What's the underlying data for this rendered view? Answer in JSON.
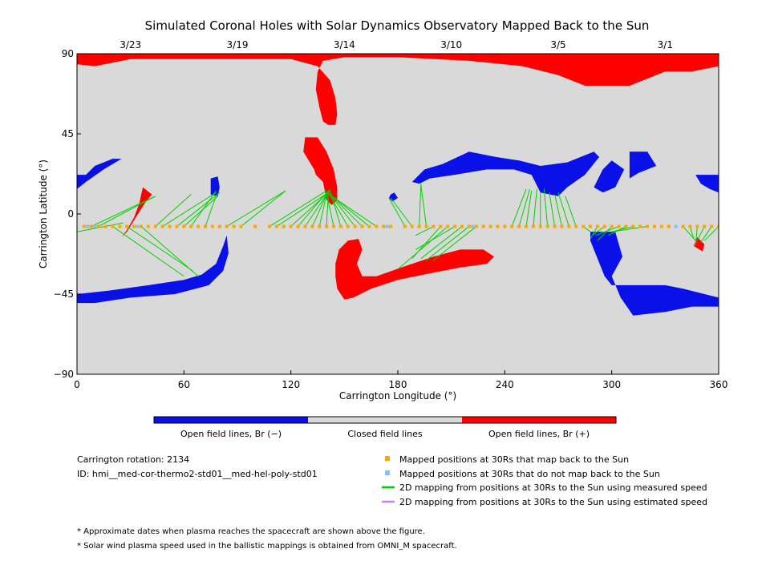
{
  "colors": {
    "open_neg": "#0a10e8",
    "closed": "#d9d9d9",
    "open_pos": "#ff0000",
    "mapped": "#ffa500",
    "unmapped": "#80c0ff",
    "measured_line": "#00d200",
    "estimated_line": "#c080ff"
  },
  "chart_data": {
    "type": "heatmap",
    "title": "Simulated Coronal Holes with Solar Dynamics Observatory Mapped Back to the Sun",
    "xlabel": "Carrington Longitude (°)",
    "ylabel": "Carrington Latitude (°)",
    "xlim": [
      0,
      360
    ],
    "ylim": [
      -90,
      90
    ],
    "xticks": [
      0,
      60,
      120,
      180,
      240,
      300,
      360
    ],
    "yticks": [
      -90,
      -45,
      0,
      45,
      90
    ],
    "ytick_labels": [
      "−90",
      "−45",
      "0",
      "45",
      "90"
    ],
    "date_ticks": [
      {
        "label": "3/23",
        "lon": 30
      },
      {
        "label": "3/19",
        "lon": 90
      },
      {
        "label": "3/14",
        "lon": 150
      },
      {
        "label": "3/10",
        "lon": 210
      },
      {
        "label": "3/5",
        "lon": 270
      },
      {
        "label": "3/1",
        "lon": 330
      }
    ],
    "colorbar": {
      "labels": [
        "Open field lines, Br (−)",
        "Closed field lines",
        "Open field lines, Br (+)"
      ]
    },
    "regions": [
      {
        "polarity": "positive",
        "points": [
          [
            0,
            90
          ],
          [
            360,
            90
          ],
          [
            360,
            83
          ],
          [
            345,
            80
          ],
          [
            330,
            80
          ],
          [
            310,
            72
          ],
          [
            285,
            72
          ],
          [
            270,
            78
          ],
          [
            250,
            83
          ],
          [
            220,
            86
          ],
          [
            180,
            88
          ],
          [
            150,
            88
          ],
          [
            138,
            86
          ],
          [
            135,
            80
          ],
          [
            134,
            70
          ],
          [
            136,
            60
          ],
          [
            138,
            52
          ],
          [
            141,
            50
          ],
          [
            145,
            50
          ],
          [
            146,
            56
          ],
          [
            145,
            65
          ],
          [
            142,
            75
          ],
          [
            135,
            83
          ],
          [
            120,
            87
          ],
          [
            90,
            87
          ],
          [
            60,
            87
          ],
          [
            30,
            87
          ],
          [
            10,
            83
          ],
          [
            0,
            84
          ]
        ]
      },
      {
        "polarity": "positive",
        "points": [
          [
            133,
            25
          ],
          [
            127,
            35
          ],
          [
            128,
            43
          ],
          [
            135,
            43
          ],
          [
            140,
            35
          ],
          [
            144,
            25
          ],
          [
            146,
            15
          ],
          [
            146,
            8
          ],
          [
            143,
            5
          ],
          [
            140,
            8
          ],
          [
            138,
            18
          ],
          [
            134,
            22
          ]
        ]
      },
      {
        "polarity": "positive",
        "points": [
          [
            152,
            -15
          ],
          [
            147,
            -20
          ],
          [
            145,
            -28
          ],
          [
            145,
            -35
          ],
          [
            146,
            -42
          ],
          [
            150,
            -48
          ],
          [
            155,
            -47
          ],
          [
            165,
            -42
          ],
          [
            180,
            -37
          ],
          [
            200,
            -33
          ],
          [
            215,
            -30
          ],
          [
            230,
            -28
          ],
          [
            234,
            -24
          ],
          [
            228,
            -20
          ],
          [
            215,
            -20
          ],
          [
            200,
            -24
          ],
          [
            182,
            -30
          ],
          [
            168,
            -35
          ],
          [
            160,
            -35
          ],
          [
            157,
            -28
          ],
          [
            160,
            -20
          ],
          [
            158,
            -14
          ]
        ]
      },
      {
        "polarity": "positive",
        "points": [
          [
            37,
            15
          ],
          [
            42,
            11
          ],
          [
            38,
            6
          ],
          [
            33,
            -2
          ],
          [
            28,
            -10
          ],
          [
            25,
            -13
          ],
          [
            28,
            -9
          ],
          [
            32,
            -2
          ],
          [
            35,
            6
          ],
          [
            36,
            11
          ]
        ]
      },
      {
        "polarity": "positive",
        "points": [
          [
            348,
            -13
          ],
          [
            352,
            -17
          ],
          [
            351,
            -21
          ],
          [
            346,
            -18
          ]
        ]
      },
      {
        "polarity": "negative",
        "points": [
          [
            0,
            -45
          ],
          [
            18,
            -43
          ],
          [
            40,
            -40
          ],
          [
            60,
            -37
          ],
          [
            70,
            -34
          ],
          [
            78,
            -28
          ],
          [
            82,
            -18
          ],
          [
            84,
            -12
          ],
          [
            85,
            -22
          ],
          [
            82,
            -32
          ],
          [
            74,
            -40
          ],
          [
            55,
            -45
          ],
          [
            30,
            -47
          ],
          [
            10,
            -50
          ],
          [
            0,
            -50
          ]
        ]
      },
      {
        "polarity": "negative",
        "points": [
          [
            0,
            22
          ],
          [
            5,
            22
          ],
          [
            10,
            27
          ],
          [
            20,
            31
          ],
          [
            25,
            31
          ],
          [
            15,
            25
          ],
          [
            5,
            18
          ],
          [
            0,
            14
          ]
        ]
      },
      {
        "polarity": "negative",
        "points": [
          [
            75,
            20
          ],
          [
            79,
            21
          ],
          [
            80,
            15
          ],
          [
            79,
            10
          ],
          [
            75,
            11
          ]
        ]
      },
      {
        "polarity": "negative",
        "points": [
          [
            176,
            11
          ],
          [
            178,
            12
          ],
          [
            180,
            9
          ],
          [
            177,
            7
          ],
          [
            175,
            9
          ]
        ]
      },
      {
        "polarity": "negative",
        "points": [
          [
            188,
            18
          ],
          [
            195,
            25
          ],
          [
            205,
            28
          ],
          [
            220,
            35
          ],
          [
            235,
            32
          ],
          [
            248,
            30
          ],
          [
            260,
            27
          ],
          [
            275,
            29
          ],
          [
            290,
            35
          ],
          [
            293,
            32
          ],
          [
            285,
            22
          ],
          [
            275,
            15
          ],
          [
            270,
            10
          ],
          [
            260,
            12
          ],
          [
            255,
            22
          ],
          [
            245,
            25
          ],
          [
            230,
            25
          ],
          [
            212,
            22
          ],
          [
            198,
            20
          ],
          [
            192,
            17
          ]
        ]
      },
      {
        "polarity": "negative",
        "points": [
          [
            290,
            15
          ],
          [
            295,
            12
          ],
          [
            302,
            15
          ],
          [
            307,
            25
          ],
          [
            300,
            30
          ],
          [
            295,
            25
          ]
        ]
      },
      {
        "polarity": "negative",
        "points": [
          [
            310,
            35
          ],
          [
            320,
            35
          ],
          [
            325,
            27
          ],
          [
            315,
            23
          ],
          [
            310,
            20
          ]
        ]
      },
      {
        "polarity": "negative",
        "points": [
          [
            300,
            -35
          ],
          [
            306,
            -24
          ],
          [
            302,
            -10
          ],
          [
            288,
            -10
          ],
          [
            288,
            -15
          ],
          [
            292,
            -25
          ],
          [
            296,
            -35
          ],
          [
            300,
            -40
          ],
          [
            315,
            -40
          ],
          [
            330,
            -40
          ],
          [
            340,
            -42
          ],
          [
            360,
            -47
          ],
          [
            360,
            -52
          ],
          [
            345,
            -52
          ],
          [
            330,
            -55
          ],
          [
            312,
            -57
          ],
          [
            305,
            -47
          ]
        ]
      },
      {
        "polarity": "negative",
        "points": [
          [
            347,
            22
          ],
          [
            355,
            22
          ],
          [
            360,
            22
          ],
          [
            360,
            12
          ],
          [
            355,
            14
          ],
          [
            350,
            17
          ]
        ]
      }
    ],
    "mapped_lat": -7,
    "mapped_lon": [
      4,
      8,
      12,
      16,
      20,
      24,
      28,
      32,
      36,
      40,
      44,
      48,
      52,
      56,
      60,
      64,
      68,
      72,
      76,
      80,
      84,
      88,
      92,
      100,
      108,
      112,
      116,
      120,
      124,
      128,
      132,
      136,
      140,
      144,
      148,
      152,
      156,
      160,
      164,
      168,
      172,
      176,
      184,
      188,
      192,
      196,
      200,
      204,
      208,
      212,
      216,
      220,
      224,
      228,
      232,
      236,
      240,
      244,
      248,
      252,
      256,
      260,
      264,
      268,
      272,
      276,
      280,
      284,
      288,
      292,
      296,
      300,
      304,
      308,
      312,
      316,
      320,
      324,
      328,
      332,
      340,
      344,
      348,
      352,
      356,
      360
    ],
    "unmapped_lon": [
      6,
      10,
      34,
      174,
      222,
      336
    ],
    "mappings": [
      [
        0,
        -10,
        26,
        -5
      ],
      [
        8,
        -7,
        44,
        10
      ],
      [
        12,
        -7,
        44,
        10
      ],
      [
        20,
        -7,
        60,
        -35
      ],
      [
        28,
        -7,
        65,
        -32
      ],
      [
        36,
        -7,
        68,
        -35
      ],
      [
        44,
        -7,
        64,
        11
      ],
      [
        48,
        -7,
        78,
        12
      ],
      [
        56,
        -7,
        80,
        12
      ],
      [
        60,
        -7,
        79,
        10
      ],
      [
        64,
        -7,
        78,
        13
      ],
      [
        72,
        -7,
        78,
        10
      ],
      [
        84,
        -7,
        117,
        13
      ],
      [
        92,
        -7,
        117,
        13
      ],
      [
        108,
        -7,
        140,
        13
      ],
      [
        112,
        -7,
        141,
        12
      ],
      [
        120,
        -7,
        142,
        13
      ],
      [
        124,
        -7,
        140,
        12
      ],
      [
        128,
        -7,
        142,
        14
      ],
      [
        132,
        -7,
        141,
        13
      ],
      [
        136,
        -7,
        140,
        11
      ],
      [
        140,
        -7,
        141,
        12
      ],
      [
        144,
        -7,
        140,
        12
      ],
      [
        148,
        -7,
        142,
        13
      ],
      [
        152,
        -7,
        141,
        12
      ],
      [
        156,
        -7,
        142,
        11
      ],
      [
        160,
        -7,
        141,
        12
      ],
      [
        164,
        -7,
        142,
        11
      ],
      [
        168,
        -7,
        140,
        12
      ],
      [
        184,
        -7,
        175,
        9
      ],
      [
        188,
        -7,
        176,
        9
      ],
      [
        192,
        -7,
        193,
        17
      ],
      [
        196,
        -7,
        193,
        16
      ],
      [
        200,
        -7,
        190,
        -12
      ],
      [
        204,
        -7,
        188,
        -25
      ],
      [
        208,
        -7,
        180,
        -31
      ],
      [
        212,
        -7,
        190,
        -20
      ],
      [
        216,
        -7,
        193,
        -25
      ],
      [
        220,
        -7,
        196,
        -26
      ],
      [
        224,
        -7,
        200,
        -26
      ],
      [
        244,
        -7,
        252,
        14
      ],
      [
        248,
        -7,
        254,
        14
      ],
      [
        252,
        -7,
        255,
        13
      ],
      [
        256,
        -7,
        258,
        14
      ],
      [
        260,
        -7,
        260,
        12
      ],
      [
        264,
        -7,
        262,
        14
      ],
      [
        268,
        -7,
        265,
        12
      ],
      [
        272,
        -7,
        268,
        11
      ],
      [
        276,
        -7,
        270,
        12
      ],
      [
        280,
        -7,
        274,
        10
      ],
      [
        284,
        -7,
        288,
        -10
      ],
      [
        292,
        -7,
        288,
        -14
      ],
      [
        296,
        -7,
        289,
        -12
      ],
      [
        300,
        -7,
        292,
        -15
      ],
      [
        304,
        -7,
        291,
        -12
      ],
      [
        308,
        -7,
        298,
        -12
      ],
      [
        312,
        -7,
        300,
        -10
      ],
      [
        320,
        -7,
        300,
        -10
      ],
      [
        340,
        -7,
        348,
        -16
      ],
      [
        344,
        -7,
        346,
        -14
      ],
      [
        348,
        -7,
        347,
        -18
      ],
      [
        352,
        -7,
        348,
        -15
      ],
      [
        356,
        -7,
        350,
        -16
      ],
      [
        360,
        -7,
        352,
        -15
      ]
    ]
  },
  "legend": {
    "mapped": "Mapped positions at 30Rs that map back to the Sun",
    "unmapped": "Mapped positions at 30Rs that do not map back to the Sun",
    "measured": "2D mapping from positions at 30Rs to the Sun using measured speed",
    "estimated": "2D mapping from positions at 30Rs to the Sun using estimated speed"
  },
  "info": {
    "rotation": "Carrington rotation: 2134",
    "id": "ID: hmi__med-cor-thermo2-std01__med-hel-poly-std01"
  },
  "notes": [
    "* Approximate dates when plasma reaches the spacecraft are shown above the figure.",
    "* Solar wind plasma speed used in the ballistic mappings is obtained from OMNI_M spacecraft."
  ]
}
